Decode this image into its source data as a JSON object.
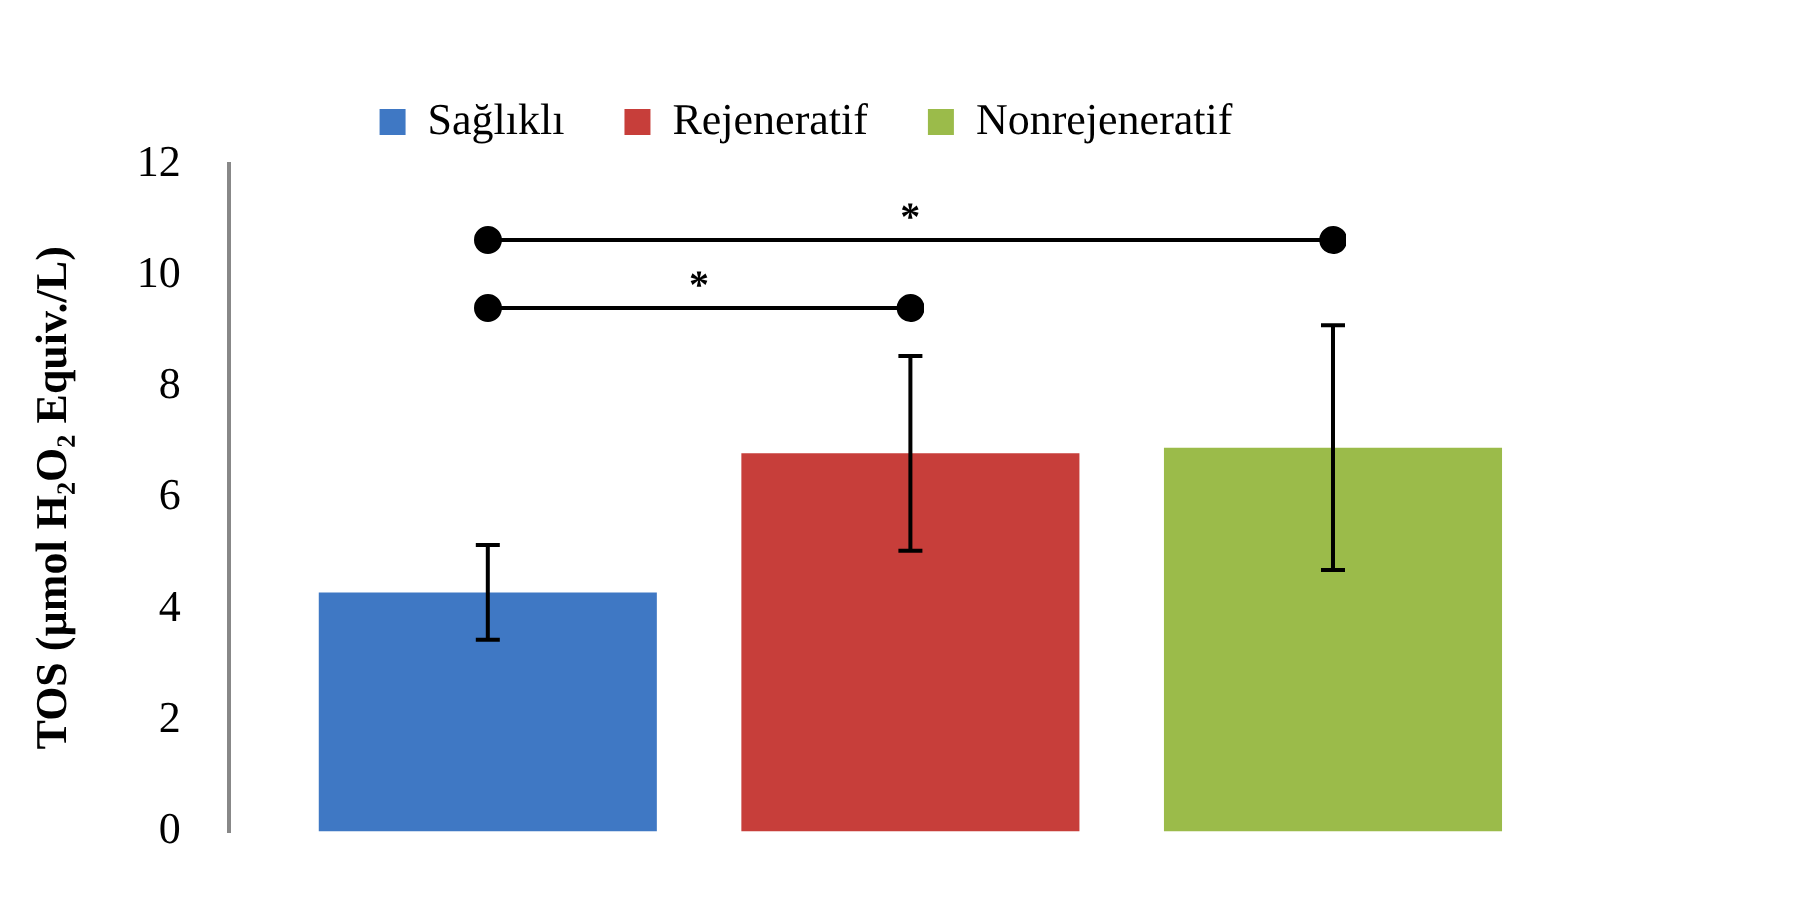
{
  "chart_data": {
    "type": "bar",
    "ylabel": "TOS (µmol H₂O₂ Equiv./L)",
    "categories": [
      null
    ],
    "series": [
      {
        "name": "Sağlıklı",
        "color": "#3f78c4",
        "values": [
          4.3
        ],
        "errors": [
          0.85
        ]
      },
      {
        "name": "Rejeneratif",
        "color": "#c73e3a",
        "values": [
          6.8
        ],
        "errors": [
          1.75
        ]
      },
      {
        "name": "Nonrejeneratif",
        "color": "#9bbb4a",
        "values": [
          6.9
        ],
        "errors": [
          2.2
        ]
      }
    ],
    "ylim": [
      0,
      12
    ],
    "yticks": [
      0,
      2,
      4,
      6,
      8,
      10,
      12
    ],
    "grid": false,
    "legend": "top",
    "annotations": [
      "*",
      "*"
    ]
  }
}
